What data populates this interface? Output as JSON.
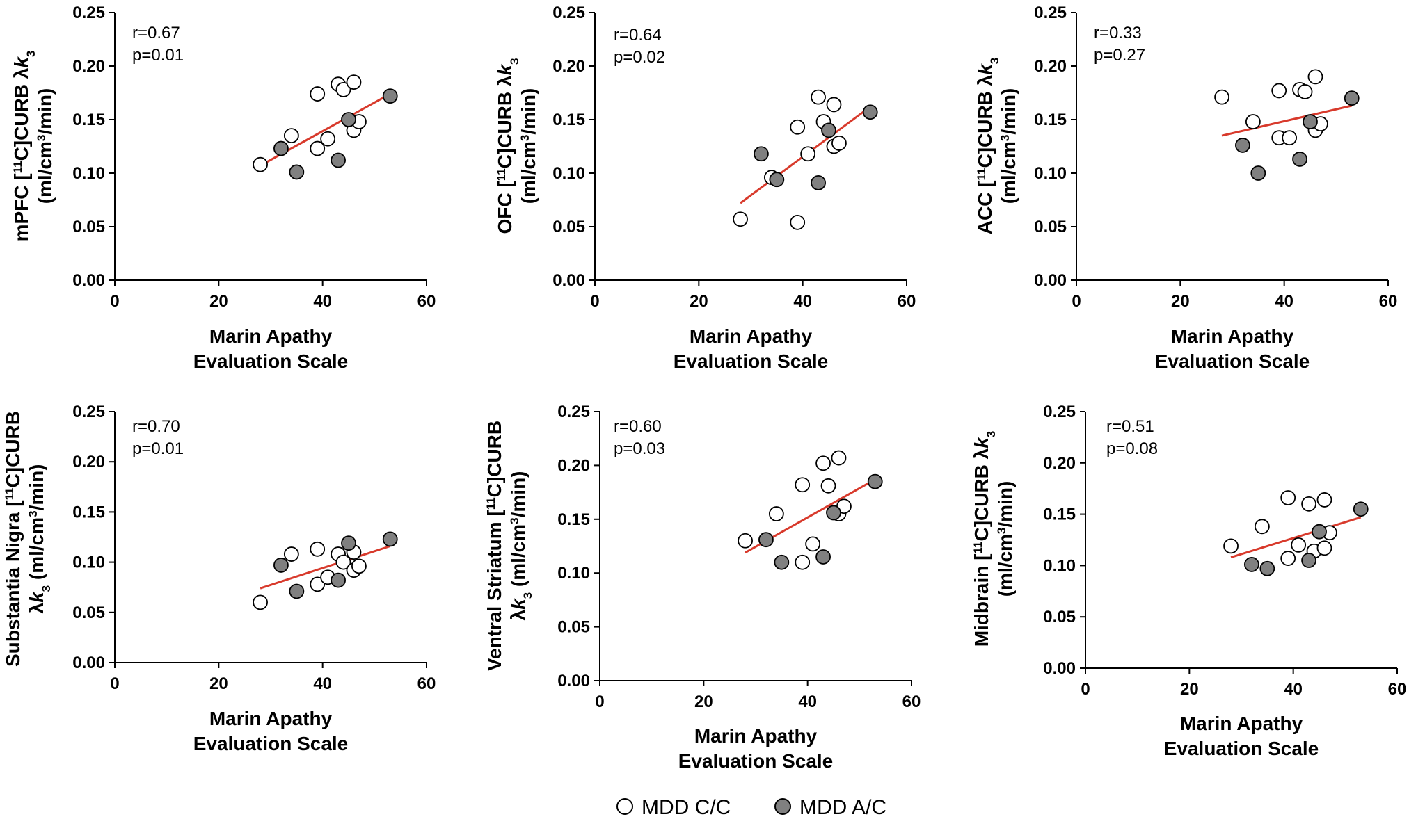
{
  "colors": {
    "open_marker": "#ffffff",
    "filled_marker": "#808080",
    "marker_stroke": "#000000",
    "fit_line": "#d83a2c",
    "axis": "#000000"
  },
  "legend": [
    {
      "label": "MDD C/C",
      "marker": "open"
    },
    {
      "label": "MDD A/C",
      "marker": "filled"
    }
  ],
  "chart_data": [
    {
      "type": "scatter",
      "ylabel_lines": [
        [
          "mPFC [",
          "11",
          "C]CURB λ",
          "k",
          "3",
          ""
        ],
        [
          "(ml/cm",
          "3",
          "/min)"
        ]
      ],
      "xlabel_lines": [
        "Marin Apathy",
        "Evaluation Scale"
      ],
      "xlim": [
        0,
        60
      ],
      "xticks": [
        "0",
        "20",
        "40",
        "60"
      ],
      "ylim": [
        0,
        0.25
      ],
      "yticks": [
        "0.00",
        "0.05",
        "0.10",
        "0.15",
        "0.20",
        "0.25"
      ],
      "stats": [
        "r=0.67",
        "p=0.01"
      ],
      "fit": [
        [
          28,
          0.107
        ],
        [
          53,
          0.174
        ]
      ],
      "series": [
        {
          "name": "MDD C/C",
          "points": [
            [
              28,
              0.108
            ],
            [
              34,
              0.135
            ],
            [
              39,
              0.174
            ],
            [
              39,
              0.123
            ],
            [
              41,
              0.132
            ],
            [
              43,
              0.183
            ],
            [
              44,
              0.178
            ],
            [
              46,
              0.185
            ],
            [
              46,
              0.14
            ],
            [
              47,
              0.148
            ]
          ]
        },
        {
          "name": "MDD A/C",
          "points": [
            [
              32,
              0.123
            ],
            [
              35,
              0.101
            ],
            [
              43,
              0.112
            ],
            [
              45,
              0.15
            ],
            [
              53,
              0.172
            ]
          ]
        }
      ]
    },
    {
      "type": "scatter",
      "ylabel_lines": [
        [
          "OFC [",
          "11",
          "C]CURB λ",
          "k",
          "3",
          ""
        ],
        [
          "(ml/cm",
          "3",
          "/min)"
        ]
      ],
      "xlabel_lines": [
        "Marin Apathy",
        "Evaluation Scale"
      ],
      "xlim": [
        0,
        60
      ],
      "xticks": [
        "0",
        "20",
        "40",
        "60"
      ],
      "ylim": [
        0,
        0.25
      ],
      "yticks": [
        "0.00",
        "0.05",
        "0.10",
        "0.15",
        "0.20",
        "0.25"
      ],
      "stats": [
        "r=0.64",
        "p=0.02"
      ],
      "fit": [
        [
          28,
          0.072
        ],
        [
          53,
          0.162
        ]
      ],
      "series": [
        {
          "name": "MDD C/C",
          "points": [
            [
              28,
              0.057
            ],
            [
              34,
              0.096
            ],
            [
              39,
              0.143
            ],
            [
              39,
              0.054
            ],
            [
              41,
              0.118
            ],
            [
              43,
              0.171
            ],
            [
              44,
              0.148
            ],
            [
              46,
              0.164
            ],
            [
              46,
              0.125
            ],
            [
              47,
              0.128
            ]
          ]
        },
        {
          "name": "MDD A/C",
          "points": [
            [
              32,
              0.118
            ],
            [
              35,
              0.094
            ],
            [
              43,
              0.091
            ],
            [
              45,
              0.14
            ],
            [
              53,
              0.157
            ]
          ]
        }
      ]
    },
    {
      "type": "scatter",
      "ylabel_lines": [
        [
          "ACC [",
          "11",
          "C]CURB λ",
          "k",
          "3",
          ""
        ],
        [
          "(ml/cm",
          "3",
          "/min)"
        ]
      ],
      "xlabel_lines": [
        "Marin Apathy",
        "Evaluation Scale"
      ],
      "xlim": [
        0,
        60
      ],
      "xticks": [
        "0",
        "20",
        "40",
        "60"
      ],
      "ylim": [
        0,
        0.25
      ],
      "yticks": [
        "0.00",
        "0.05",
        "0.10",
        "0.15",
        "0.20",
        "0.25"
      ],
      "stats": [
        "r=0.33",
        "p=0.27"
      ],
      "fit": [
        [
          28,
          0.135
        ],
        [
          53,
          0.163
        ]
      ],
      "series": [
        {
          "name": "MDD C/C",
          "points": [
            [
              28,
              0.171
            ],
            [
              34,
              0.148
            ],
            [
              39,
              0.177
            ],
            [
              39,
              0.133
            ],
            [
              41,
              0.133
            ],
            [
              43,
              0.178
            ],
            [
              44,
              0.176
            ],
            [
              46,
              0.19
            ],
            [
              46,
              0.14
            ],
            [
              47,
              0.146
            ]
          ]
        },
        {
          "name": "MDD A/C",
          "points": [
            [
              32,
              0.126
            ],
            [
              35,
              0.1
            ],
            [
              43,
              0.113
            ],
            [
              45,
              0.148
            ],
            [
              53,
              0.17
            ]
          ]
        }
      ]
    },
    {
      "type": "scatter",
      "ylabel_lines": [
        [
          "Substantia Nigra [",
          "11",
          "C]CURB",
          "",
          "",
          ""
        ],
        [
          "λ",
          "k",
          "3",
          " (ml/cm",
          "3",
          "/min)"
        ]
      ],
      "ylabel_mode": "b",
      "xlabel_lines": [
        "Marin Apathy",
        "Evaluation Scale"
      ],
      "xlim": [
        0,
        60
      ],
      "xticks": [
        "0",
        "20",
        "40",
        "60"
      ],
      "ylim": [
        0,
        0.25
      ],
      "yticks": [
        "0.00",
        "0.05",
        "0.10",
        "0.15",
        "0.20",
        "0.25"
      ],
      "stats": [
        "r=0.70",
        "p=0.01"
      ],
      "fit": [
        [
          28,
          0.074
        ],
        [
          53,
          0.116
        ]
      ],
      "series": [
        {
          "name": "MDD C/C",
          "points": [
            [
              28,
              0.06
            ],
            [
              34,
              0.108
            ],
            [
              39,
              0.113
            ],
            [
              39,
              0.078
            ],
            [
              41,
              0.085
            ],
            [
              43,
              0.108
            ],
            [
              44,
              0.1
            ],
            [
              46,
              0.11
            ],
            [
              46,
              0.092
            ],
            [
              47,
              0.096
            ]
          ]
        },
        {
          "name": "MDD A/C",
          "points": [
            [
              32,
              0.097
            ],
            [
              35,
              0.071
            ],
            [
              43,
              0.082
            ],
            [
              45,
              0.119
            ],
            [
              53,
              0.123
            ]
          ]
        }
      ]
    },
    {
      "type": "scatter",
      "ylabel_lines": [
        [
          "Ventral Striatum [",
          "11",
          "C]CURB",
          "",
          "",
          ""
        ],
        [
          "λ",
          "k",
          "3",
          " (ml/cm",
          "3",
          "/min)"
        ]
      ],
      "ylabel_mode": "b",
      "xlabel_lines": [
        "Marin Apathy",
        "Evaluation Scale"
      ],
      "xlim": [
        0,
        60
      ],
      "xticks": [
        "0",
        "20",
        "40",
        "60"
      ],
      "ylim": [
        0,
        0.25
      ],
      "yticks": [
        "0.00",
        "0.05",
        "0.10",
        "0.15",
        "0.20",
        "0.25"
      ],
      "stats": [
        "r=0.60",
        "p=0.03"
      ],
      "fit": [
        [
          28,
          0.119
        ],
        [
          53,
          0.187
        ]
      ],
      "series": [
        {
          "name": "MDD C/C",
          "points": [
            [
              28,
              0.13
            ],
            [
              34,
              0.155
            ],
            [
              39,
              0.182
            ],
            [
              39,
              0.11
            ],
            [
              41,
              0.127
            ],
            [
              43,
              0.202
            ],
            [
              44,
              0.181
            ],
            [
              46,
              0.207
            ],
            [
              46,
              0.155
            ],
            [
              47,
              0.162
            ]
          ]
        },
        {
          "name": "MDD A/C",
          "points": [
            [
              32,
              0.131
            ],
            [
              35,
              0.11
            ],
            [
              43,
              0.115
            ],
            [
              45,
              0.156
            ],
            [
              53,
              0.185
            ]
          ]
        }
      ]
    },
    {
      "type": "scatter",
      "ylabel_lines": [
        [
          "Midbrain [",
          "11",
          "C]CURB λ",
          "k",
          "3",
          ""
        ],
        [
          "(ml/cm",
          "3",
          "/min)"
        ]
      ],
      "xlabel_lines": [
        "Marin Apathy",
        "Evaluation Scale"
      ],
      "xlim": [
        0,
        60
      ],
      "xticks": [
        "0",
        "20",
        "40",
        "60"
      ],
      "ylim": [
        0,
        0.25
      ],
      "yticks": [
        "0.00",
        "0.05",
        "0.10",
        "0.15",
        "0.20",
        "0.25"
      ],
      "stats": [
        "r=0.51",
        "p=0.08"
      ],
      "fit": [
        [
          28,
          0.108
        ],
        [
          53,
          0.147
        ]
      ],
      "series": [
        {
          "name": "MDD C/C",
          "points": [
            [
              28,
              0.119
            ],
            [
              34,
              0.138
            ],
            [
              39,
              0.166
            ],
            [
              39,
              0.107
            ],
            [
              41,
              0.12
            ],
            [
              43,
              0.16
            ],
            [
              44,
              0.114
            ],
            [
              46,
              0.164
            ],
            [
              46,
              0.117
            ],
            [
              47,
              0.132
            ]
          ]
        },
        {
          "name": "MDD A/C",
          "points": [
            [
              32,
              0.101
            ],
            [
              35,
              0.097
            ],
            [
              43,
              0.105
            ],
            [
              45,
              0.133
            ],
            [
              53,
              0.155
            ]
          ]
        }
      ]
    }
  ]
}
